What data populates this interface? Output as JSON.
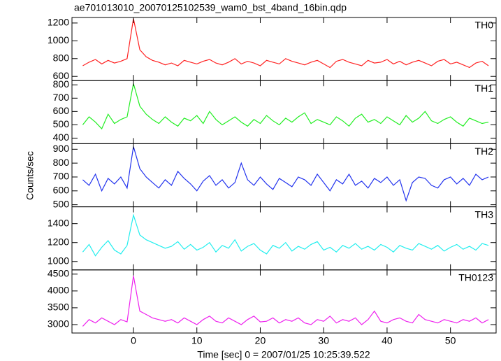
{
  "chart_data": [
    {
      "type": "line",
      "title": "ae701013010_20070125102539_wam0_bst_4band_16bin.qdp",
      "x": [
        -8,
        -7,
        -6,
        -5,
        -4,
        -3,
        -2,
        -1,
        0,
        1,
        2,
        3,
        4,
        5,
        6,
        7,
        8,
        9,
        10,
        11,
        12,
        13,
        14,
        15,
        16,
        17,
        18,
        19,
        20,
        21,
        22,
        23,
        24,
        25,
        26,
        27,
        28,
        29,
        30,
        31,
        32,
        33,
        34,
        35,
        36,
        37,
        38,
        39,
        40,
        41,
        42,
        43,
        44,
        45,
        46,
        47,
        48,
        49,
        50,
        51,
        52,
        53,
        54,
        55,
        56
      ],
      "series": [
        {
          "name": "TH0",
          "color": "#ff2222",
          "values": [
            720,
            760,
            790,
            740,
            780,
            750,
            770,
            800,
            1250,
            900,
            820,
            780,
            760,
            730,
            750,
            720,
            780,
            760,
            740,
            770,
            790,
            750,
            730,
            760,
            800,
            740,
            770,
            750,
            720,
            780,
            760,
            740,
            800,
            770,
            750,
            730,
            760,
            780,
            740,
            700,
            770,
            790,
            760,
            740,
            720,
            780,
            750,
            760,
            790,
            740,
            770,
            730,
            760,
            780,
            750,
            720,
            770,
            790,
            740,
            760,
            730,
            700,
            750,
            770,
            720
          ]
        }
      ],
      "ylim": [
        553,
        1262
      ],
      "yticks": [
        600,
        800,
        1000,
        1200
      ]
    },
    {
      "type": "line",
      "x": [
        -8,
        -7,
        -6,
        -5,
        -4,
        -3,
        -2,
        -1,
        0,
        1,
        2,
        3,
        4,
        5,
        6,
        7,
        8,
        9,
        10,
        11,
        12,
        13,
        14,
        15,
        16,
        17,
        18,
        19,
        20,
        21,
        22,
        23,
        24,
        25,
        26,
        27,
        28,
        29,
        30,
        31,
        32,
        33,
        34,
        35,
        36,
        37,
        38,
        39,
        40,
        41,
        42,
        43,
        44,
        45,
        46,
        47,
        48,
        49,
        50,
        51,
        52,
        53,
        54,
        55,
        56
      ],
      "series": [
        {
          "name": "TH1",
          "color": "#22ee22",
          "values": [
            500,
            560,
            520,
            470,
            580,
            510,
            540,
            560,
            810,
            640,
            580,
            540,
            510,
            560,
            520,
            490,
            550,
            530,
            570,
            510,
            600,
            540,
            500,
            530,
            560,
            520,
            490,
            540,
            510,
            570,
            530,
            500,
            550,
            520,
            560,
            590,
            510,
            540,
            520,
            500,
            560,
            530,
            490,
            550,
            580,
            520,
            540,
            510,
            560,
            530,
            500,
            570,
            520,
            550,
            600,
            530,
            510,
            540,
            560,
            520,
            490,
            550,
            530,
            510,
            520
          ]
        }
      ],
      "ylim": [
        358,
        832
      ],
      "yticks": [
        400,
        500,
        600,
        700,
        800
      ]
    },
    {
      "type": "line",
      "ylabel": "Counts/sec",
      "x": [
        -8,
        -7,
        -6,
        -5,
        -4,
        -3,
        -2,
        -1,
        0,
        1,
        2,
        3,
        4,
        5,
        6,
        7,
        8,
        9,
        10,
        11,
        12,
        13,
        14,
        15,
        16,
        17,
        18,
        19,
        20,
        21,
        22,
        23,
        24,
        25,
        26,
        27,
        28,
        29,
        30,
        31,
        32,
        33,
        34,
        35,
        36,
        37,
        38,
        39,
        40,
        41,
        42,
        43,
        44,
        45,
        46,
        47,
        48,
        49,
        50,
        51,
        52,
        53,
        54,
        55,
        56
      ],
      "series": [
        {
          "name": "TH2",
          "color": "#2233ee",
          "values": [
            680,
            640,
            720,
            600,
            690,
            650,
            700,
            620,
            920,
            760,
            700,
            660,
            620,
            680,
            640,
            740,
            690,
            650,
            600,
            670,
            710,
            640,
            680,
            620,
            660,
            800,
            680,
            640,
            700,
            650,
            610,
            690,
            660,
            630,
            700,
            680,
            640,
            720,
            660,
            600,
            680,
            650,
            720,
            640,
            670,
            620,
            690,
            660,
            700,
            640,
            680,
            530,
            660,
            700,
            690,
            640,
            620,
            680,
            700,
            650,
            690,
            640,
            720,
            680,
            700
          ]
        }
      ],
      "ylim": [
        485,
        940
      ],
      "yticks": [
        500,
        600,
        700,
        800,
        900
      ]
    },
    {
      "type": "line",
      "x": [
        -8,
        -7,
        -6,
        -5,
        -4,
        -3,
        -2,
        -1,
        0,
        1,
        2,
        3,
        4,
        5,
        6,
        7,
        8,
        9,
        10,
        11,
        12,
        13,
        14,
        15,
        16,
        17,
        18,
        19,
        20,
        21,
        22,
        23,
        24,
        25,
        26,
        27,
        28,
        29,
        30,
        31,
        32,
        33,
        34,
        35,
        36,
        37,
        38,
        39,
        40,
        41,
        42,
        43,
        44,
        45,
        46,
        47,
        48,
        49,
        50,
        51,
        52,
        53,
        54,
        55,
        56
      ],
      "series": [
        {
          "name": "TH3",
          "color": "#22eeee",
          "values": [
            1100,
            1180,
            1060,
            1150,
            1220,
            1120,
            1080,
            1170,
            1490,
            1280,
            1230,
            1200,
            1170,
            1140,
            1160,
            1210,
            1130,
            1180,
            1120,
            1150,
            1200,
            1100,
            1170,
            1140,
            1230,
            1110,
            1160,
            1190,
            1120,
            1080,
            1170,
            1140,
            1200,
            1110,
            1160,
            1130,
            1180,
            1210,
            1120,
            1150,
            1100,
            1170,
            1140,
            1190,
            1130,
            1160,
            1120,
            1180,
            1150,
            1100,
            1170,
            1140,
            1120,
            1190,
            1160,
            1130,
            1170,
            1110,
            1150,
            1180,
            1130,
            1160,
            1120,
            1190,
            1170
          ]
        }
      ],
      "ylim": [
        911,
        1578
      ],
      "yticks": [
        1000,
        1200,
        1400
      ]
    },
    {
      "type": "line",
      "xlabel": "Time [sec] 0 = 2007/01/25 10:25:39.522",
      "x": [
        -8,
        -7,
        -6,
        -5,
        -4,
        -3,
        -2,
        -1,
        0,
        1,
        2,
        3,
        4,
        5,
        6,
        7,
        8,
        9,
        10,
        11,
        12,
        13,
        14,
        15,
        16,
        17,
        18,
        19,
        20,
        21,
        22,
        23,
        24,
        25,
        26,
        27,
        28,
        29,
        30,
        31,
        32,
        33,
        34,
        35,
        36,
        37,
        38,
        39,
        40,
        41,
        42,
        43,
        44,
        45,
        46,
        47,
        48,
        49,
        50,
        51,
        52,
        53,
        54,
        55,
        56
      ],
      "series": [
        {
          "name": "TH0123",
          "color": "#ee22ee",
          "values": [
            2950,
            3150,
            3050,
            3200,
            3100,
            3000,
            3150,
            3080,
            4450,
            3400,
            3300,
            3200,
            3150,
            3100,
            3150,
            3050,
            3200,
            3100,
            3000,
            3150,
            3250,
            3100,
            3050,
            3200,
            3100,
            3000,
            3150,
            3250,
            3080,
            3100,
            3200,
            3050,
            3150,
            3100,
            3200,
            3050,
            3000,
            3150,
            3100,
            3250,
            3050,
            3150,
            3100,
            3200,
            3000,
            3150,
            3400,
            3100,
            3050,
            3150,
            3200,
            3100,
            3050,
            3300,
            3150,
            3100,
            3050,
            3150,
            3100,
            3050,
            3150,
            3100,
            3200,
            3050,
            3150
          ]
        }
      ],
      "ylim": [
        2750,
        4625
      ],
      "yticks": [
        3000,
        3500,
        4000,
        4500
      ],
      "xlim": [
        -9.7,
        57.2
      ],
      "xticks": [
        0,
        10,
        20,
        30,
        40,
        50
      ]
    }
  ]
}
